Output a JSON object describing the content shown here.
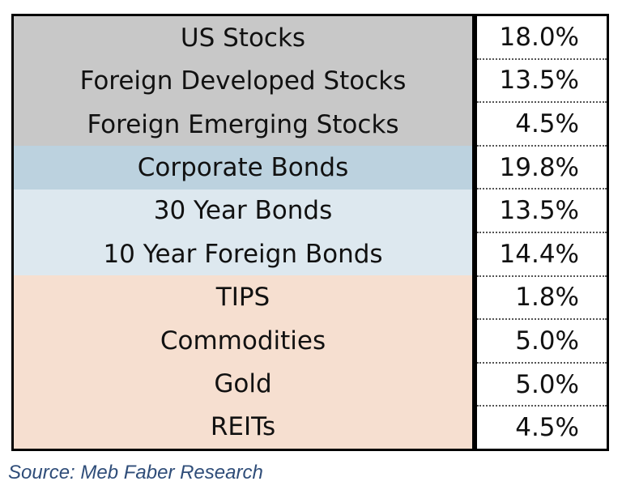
{
  "chart_data": {
    "type": "table",
    "title": "",
    "columns": [
      "",
      ""
    ],
    "rows": [
      {
        "label": "US Stocks",
        "value": "18.0%",
        "group": "stocks"
      },
      {
        "label": "Foreign Developed Stocks",
        "value": "13.5%",
        "group": "stocks"
      },
      {
        "label": "Foreign Emerging Stocks",
        "value": "4.5%",
        "group": "stocks"
      },
      {
        "label": "Corporate Bonds",
        "value": "19.8%",
        "group": "corporate"
      },
      {
        "label": "30 Year Bonds",
        "value": "13.5%",
        "group": "bonds"
      },
      {
        "label": "10 Year Foreign Bonds",
        "value": "14.4%",
        "group": "bonds"
      },
      {
        "label": "TIPS",
        "value": "1.8%",
        "group": "real"
      },
      {
        "label": "Commodities",
        "value": "5.0%",
        "group": "real"
      },
      {
        "label": "Gold",
        "value": "5.0%",
        "group": "real"
      },
      {
        "label": "REITs",
        "value": "4.5%",
        "group": "real"
      }
    ],
    "values": [
      18.0,
      13.5,
      4.5,
      19.8,
      13.5,
      14.4,
      1.8,
      5.0,
      5.0,
      4.5
    ],
    "group_colors": {
      "stocks": "#c8c8c8",
      "corporate": "#bcd2df",
      "bonds": "#dde8ef",
      "real": "#f6dfd0"
    }
  },
  "source": "Source: Meb Faber Research"
}
